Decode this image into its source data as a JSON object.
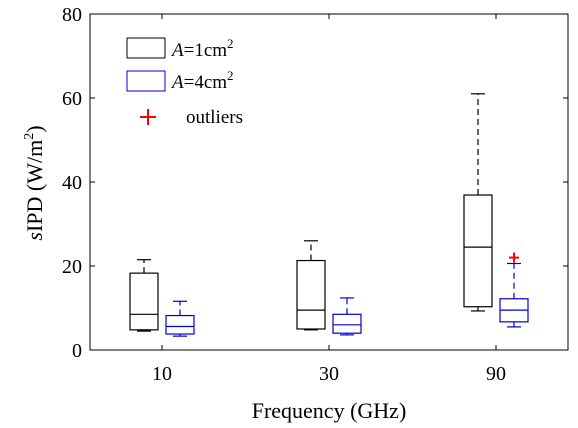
{
  "chart_data": {
    "type": "box",
    "title": "",
    "xlabel": "Frequency (GHz)",
    "ylabel": {
      "italic": "s",
      "main": "IPD (W/m",
      "sup": "2",
      "close": ")"
    },
    "ylim": [
      0,
      80
    ],
    "yticks": [
      0,
      20,
      40,
      60,
      80
    ],
    "categories": [
      "10",
      "30",
      "90"
    ],
    "grid": false,
    "legend_position": "top-left",
    "legend": [
      {
        "italic": "A",
        "text": "=1cm",
        "sup": "2"
      },
      {
        "italic": "A",
        "text": "=4cm",
        "sup": "2"
      },
      {
        "italic": "",
        "text": "outliers",
        "sup": ""
      }
    ],
    "series": [
      {
        "name": "A=1cm2",
        "color": "#000000",
        "boxes": [
          {
            "category": "10",
            "min": 4.5,
            "q1": 4.8,
            "median": 8.5,
            "q3": 18.3,
            "max": 21.5,
            "outliers": []
          },
          {
            "category": "30",
            "min": 4.8,
            "q1": 5.0,
            "median": 9.5,
            "q3": 21.3,
            "max": 26.0,
            "outliers": []
          },
          {
            "category": "90",
            "min": 9.3,
            "q1": 10.3,
            "median": 24.5,
            "q3": 36.9,
            "max": 61.0,
            "outliers": []
          }
        ]
      },
      {
        "name": "A=4cm2",
        "color": "#0000cc",
        "boxes": [
          {
            "category": "10",
            "min": 3.3,
            "q1": 3.8,
            "median": 5.6,
            "q3": 8.2,
            "max": 11.6,
            "outliers": []
          },
          {
            "category": "30",
            "min": 3.6,
            "q1": 4.0,
            "median": 6.0,
            "q3": 8.5,
            "max": 12.4,
            "outliers": []
          },
          {
            "category": "90",
            "min": 5.5,
            "q1": 6.7,
            "median": 9.5,
            "q3": 12.2,
            "max": 20.6,
            "outliers": [
              22.0
            ]
          }
        ]
      }
    ],
    "outlier_color": "#ff0000"
  }
}
